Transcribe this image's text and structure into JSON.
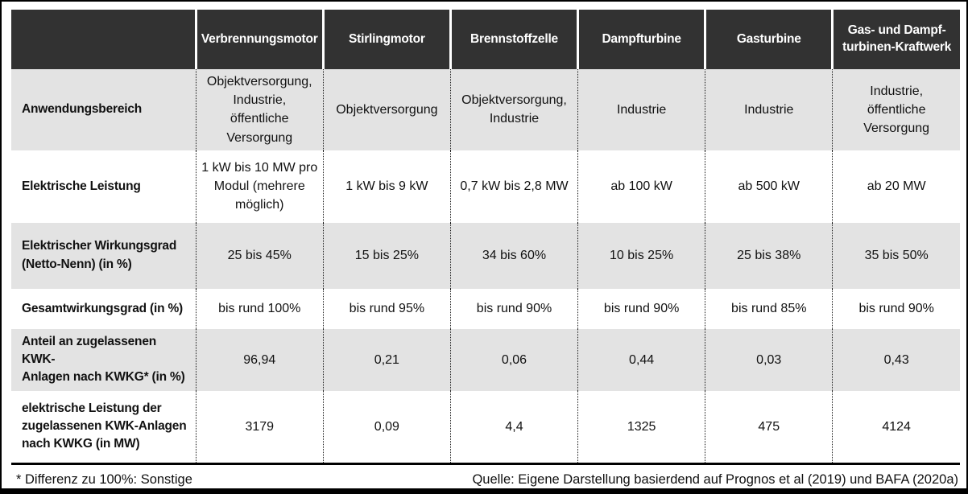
{
  "table": {
    "corner": "",
    "columns": [
      "Verbrennungsmotor",
      "Stirlingmotor",
      "Brennstoffzelle",
      "Dampfturbine",
      "Gasturbine",
      "Gas- und Dampf-\nturbinen-Kraftwerk"
    ],
    "rows": [
      {
        "label": "Anwendungsbereich",
        "values": [
          "Objektversorgung,\nIndustrie,\nöffentliche\nVersorgung",
          "Objektversorgung",
          "Objektversorgung,\nIndustrie",
          "Industrie",
          "Industrie",
          "Industrie,\nöffentliche\nVersorgung"
        ]
      },
      {
        "label": "Elektrische Leistung",
        "values": [
          "1 kW bis 10 MW pro\nModul (mehrere\nmöglich)",
          "1 kW bis 9 kW",
          "0,7 kW bis 2,8 MW",
          "ab 100 kW",
          "ab 500 kW",
          "ab 20 MW"
        ]
      },
      {
        "label": "Elektrischer Wirkungsgrad\n(Netto-Nenn) (in %)",
        "values": [
          "25 bis 45%",
          "15 bis 25%",
          "34 bis 60%",
          "10 bis 25%",
          "25 bis 38%",
          "35 bis 50%"
        ]
      },
      {
        "label": "Gesamtwirkungsgrad (in %)",
        "values": [
          "bis rund 100%",
          "bis rund 95%",
          "bis rund 90%",
          "bis rund 90%",
          "bis rund 85%",
          "bis rund 90%"
        ]
      },
      {
        "label": "Anteil an zugelassenen KWK-\nAnlagen nach KWKG* (in %)",
        "values": [
          "96,94",
          "0,21",
          "0,06",
          "0,44",
          "0,03",
          "0,43"
        ]
      },
      {
        "label": "elektrische Leistung der\nzugelassenen KWK-Anlagen\nnach KWKG (in MW)",
        "values": [
          "3179",
          "0,09",
          "4,4",
          "1325",
          "475",
          "4124"
        ]
      }
    ]
  },
  "footer": {
    "note": "* Differenz zu 100%: Sonstige",
    "source": "Quelle: Eigene Darstellung basierdend auf Prognos et al (2019) und BAFA (2020a)"
  },
  "colors": {
    "header_bg": "#323232",
    "header_text": "#ffffff",
    "row_alt_bg": "#e3e3e3",
    "row_bg": "#ffffff",
    "border": "#000000",
    "dotted_separator": "#1a1a1a"
  }
}
